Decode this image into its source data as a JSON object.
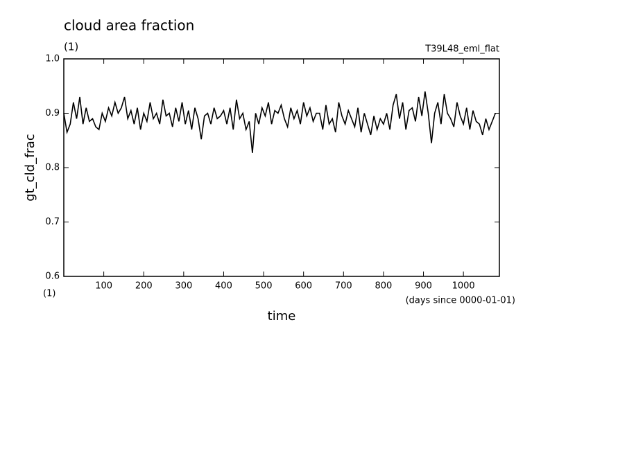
{
  "chart_data": {
    "type": "line",
    "title": "cloud area fraction",
    "subtitle": "(1)",
    "run_label": "T39L48_eml_flat",
    "y_label": "gt_cld_frac",
    "y_unit": "(1)",
    "x_label": "time",
    "x_unit": "(days since 0000-01-01)",
    "color": "#000000",
    "xlim": [
      0,
      1090
    ],
    "ylim": [
      0.6,
      1.0
    ],
    "xticks": [
      100,
      200,
      300,
      400,
      500,
      600,
      700,
      800,
      900,
      1000
    ],
    "yticks": [
      0.6,
      0.7,
      0.8,
      0.9,
      {
        "value": 1,
        "label": "1.0"
      }
    ],
    "x": [
      0,
      8,
      16,
      24,
      32,
      40,
      48,
      56,
      64,
      72,
      80,
      88,
      96,
      104,
      112,
      120,
      128,
      136,
      144,
      152,
      160,
      168,
      176,
      184,
      192,
      200,
      208,
      216,
      224,
      232,
      240,
      248,
      256,
      264,
      272,
      280,
      288,
      296,
      304,
      312,
      320,
      328,
      336,
      344,
      352,
      360,
      368,
      376,
      384,
      392,
      400,
      408,
      416,
      424,
      432,
      440,
      448,
      456,
      464,
      472,
      480,
      488,
      496,
      504,
      512,
      520,
      528,
      536,
      544,
      552,
      560,
      568,
      576,
      584,
      592,
      600,
      608,
      616,
      624,
      632,
      640,
      648,
      656,
      664,
      672,
      680,
      688,
      696,
      704,
      712,
      720,
      728,
      736,
      744,
      752,
      760,
      768,
      776,
      784,
      792,
      800,
      808,
      816,
      824,
      832,
      840,
      848,
      856,
      864,
      872,
      880,
      888,
      896,
      904,
      912,
      920,
      928,
      936,
      944,
      952,
      960,
      968,
      976,
      984,
      992,
      1000,
      1008,
      1016,
      1024,
      1032,
      1040,
      1048,
      1056,
      1064,
      1072,
      1080
    ],
    "values": [
      0.9,
      0.865,
      0.88,
      0.92,
      0.89,
      0.93,
      0.88,
      0.91,
      0.885,
      0.89,
      0.875,
      0.87,
      0.9,
      0.885,
      0.91,
      0.895,
      0.92,
      0.9,
      0.91,
      0.93,
      0.89,
      0.905,
      0.88,
      0.91,
      0.87,
      0.9,
      0.885,
      0.92,
      0.89,
      0.9,
      0.88,
      0.925,
      0.895,
      0.9,
      0.875,
      0.91,
      0.885,
      0.92,
      0.88,
      0.905,
      0.87,
      0.91,
      0.89,
      0.852,
      0.895,
      0.9,
      0.88,
      0.91,
      0.89,
      0.895,
      0.905,
      0.88,
      0.91,
      0.87,
      0.925,
      0.89,
      0.9,
      0.87,
      0.885,
      0.827,
      0.9,
      0.88,
      0.91,
      0.895,
      0.92,
      0.88,
      0.905,
      0.9,
      0.915,
      0.89,
      0.875,
      0.91,
      0.89,
      0.905,
      0.88,
      0.92,
      0.895,
      0.91,
      0.885,
      0.9,
      0.9,
      0.87,
      0.915,
      0.88,
      0.89,
      0.865,
      0.92,
      0.895,
      0.88,
      0.905,
      0.89,
      0.875,
      0.91,
      0.865,
      0.9,
      0.88,
      0.86,
      0.895,
      0.87,
      0.89,
      0.88,
      0.9,
      0.87,
      0.915,
      0.935,
      0.89,
      0.92,
      0.87,
      0.905,
      0.91,
      0.885,
      0.93,
      0.895,
      0.94,
      0.9,
      0.845,
      0.9,
      0.92,
      0.88,
      0.935,
      0.9,
      0.89,
      0.875,
      0.92,
      0.895,
      0.88,
      0.91,
      0.87,
      0.905,
      0.885,
      0.88,
      0.86,
      0.89,
      0.87,
      0.885,
      0.9
    ]
  }
}
